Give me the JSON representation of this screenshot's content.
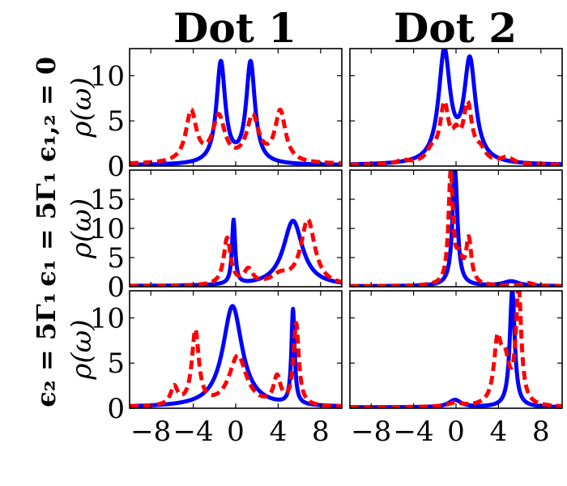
{
  "column_titles": [
    "Dot 1",
    "Dot 2"
  ],
  "row_titles": [
    "ϵ₁,₂ = 0",
    "ϵ₁ = 5Γ₁",
    "ϵ₂ = 5Γ₁"
  ],
  "colors": {
    "solid": "#0000ff",
    "dashed": "#ff0000"
  },
  "chart_data": [
    {
      "type": "line",
      "row": 0,
      "col": 0,
      "row_title": "ϵ₁,₂ = 0",
      "column_title": "Dot 1",
      "ylabel": "ρ(ω)",
      "xlim": [
        -10,
        10
      ],
      "ylim": [
        0,
        13
      ],
      "yticks": [
        0,
        5,
        10
      ],
      "xticks": [],
      "grid": false,
      "series": [
        {
          "style": "solid",
          "color": "#0000ff",
          "peaks": [
            [
              -1.4,
              11.2,
              0.5
            ],
            [
              1.4,
              11.2,
              0.5
            ]
          ],
          "baseline": 0.1
        },
        {
          "style": "dashed",
          "color": "#ff0000",
          "peaks": [
            [
              -4.2,
              5.6,
              0.6
            ],
            [
              -1.6,
              5.0,
              0.7
            ],
            [
              1.6,
              5.0,
              0.7
            ],
            [
              4.2,
              5.6,
              0.6
            ]
          ],
          "baseline": 0.2
        }
      ]
    },
    {
      "type": "line",
      "row": 0,
      "col": 1,
      "row_title": "ϵ₁,₂ = 0",
      "column_title": "Dot 2",
      "ylabel": "",
      "xlim": [
        -10,
        10
      ],
      "ylim": [
        0,
        13
      ],
      "yticks": [],
      "xticks": [],
      "grid": false,
      "series": [
        {
          "style": "solid",
          "color": "#0000ff",
          "peaks": [
            [
              -1.1,
              12.2,
              0.65
            ],
            [
              1.3,
              11.2,
              0.65
            ]
          ],
          "baseline": 0.1
        },
        {
          "style": "dashed",
          "color": "#ff0000",
          "peaks": [
            [
              -1.1,
              6.2,
              0.5
            ],
            [
              0.0,
              2.2,
              0.4
            ],
            [
              1.1,
              6.2,
              0.5
            ],
            [
              -2.3,
              1.2,
              0.6
            ],
            [
              2.3,
              1.2,
              0.6
            ],
            [
              4.8,
              0.7,
              0.7
            ],
            [
              -5.0,
              0.4,
              0.7
            ]
          ],
          "baseline": 0.1
        }
      ]
    },
    {
      "type": "line",
      "row": 1,
      "col": 0,
      "row_title": "ϵ₁ = 5Γ₁",
      "column_title": "Dot 1",
      "ylabel": "ρ(ω)",
      "xlim": [
        -10,
        10
      ],
      "ylim": [
        0,
        20
      ],
      "yticks": [
        0,
        5,
        10,
        15
      ],
      "xticks": [],
      "grid": false,
      "series": [
        {
          "style": "solid",
          "color": "#0000ff",
          "peaks": [
            [
              -0.2,
              11.0,
              0.18
            ],
            [
              5.4,
              11.2,
              1.1
            ]
          ],
          "baseline": 0.1
        },
        {
          "style": "dashed",
          "color": "#ff0000",
          "peaks": [
            [
              -0.8,
              8.0,
              0.4
            ],
            [
              1.2,
              2.5,
              0.5
            ],
            [
              6.8,
              11.2,
              0.8
            ],
            [
              4.2,
              1.5,
              1.0
            ]
          ],
          "baseline": 0.1
        }
      ]
    },
    {
      "type": "line",
      "row": 1,
      "col": 1,
      "row_title": "ϵ₁ = 5Γ₁",
      "column_title": "Dot 2",
      "ylabel": "",
      "xlim": [
        -10,
        10
      ],
      "ylim": [
        0,
        20
      ],
      "yticks": [],
      "xticks": [],
      "grid": false,
      "series": [
        {
          "style": "solid",
          "color": "#0000ff",
          "peaks": [
            [
              -0.1,
              20.0,
              0.28
            ],
            [
              5.2,
              0.8,
              0.9
            ]
          ],
          "baseline": 0.1
        },
        {
          "style": "dashed",
          "color": "#ff0000",
          "peaks": [
            [
              -0.5,
              19.0,
              0.25
            ],
            [
              1.2,
              7.5,
              0.3
            ],
            [
              0.3,
              4.0,
              0.4
            ],
            [
              6.8,
              0.5,
              0.6
            ]
          ],
          "baseline": 0.1
        }
      ]
    },
    {
      "type": "line",
      "row": 2,
      "col": 0,
      "row_title": "ϵ₂ = 5Γ₁",
      "column_title": "Dot 1",
      "ylabel": "ρ(ω)",
      "xlim": [
        -10,
        10
      ],
      "ylim": [
        0,
        13
      ],
      "yticks": [
        0,
        5,
        10
      ],
      "xticks": [
        -8,
        -4,
        0,
        4,
        8
      ],
      "grid": false,
      "series": [
        {
          "style": "solid",
          "color": "#0000ff",
          "peaks": [
            [
              -0.3,
              11.2,
              1.1
            ],
            [
              5.4,
              10.5,
              0.18
            ]
          ],
          "baseline": 0.1
        },
        {
          "style": "dashed",
          "color": "#ff0000",
          "peaks": [
            [
              -3.8,
              8.2,
              0.4
            ],
            [
              -5.8,
              2.0,
              0.4
            ],
            [
              0.2,
              5.6,
              1.0
            ],
            [
              3.9,
              3.0,
              0.4
            ],
            [
              5.7,
              9.0,
              0.3
            ]
          ],
          "baseline": 0.1
        }
      ]
    },
    {
      "type": "line",
      "row": 2,
      "col": 1,
      "row_title": "ϵ₂ = 5Γ₁",
      "column_title": "Dot 2",
      "ylabel": "",
      "xlim": [
        -10,
        10
      ],
      "ylim": [
        0,
        13
      ],
      "yticks": [],
      "xticks": [
        -8,
        -4,
        0,
        4,
        8
      ],
      "grid": false,
      "series": [
        {
          "style": "solid",
          "color": "#0000ff",
          "peaks": [
            [
              5.3,
              13.0,
              0.28
            ],
            [
              -0.1,
              0.8,
              0.7
            ]
          ],
          "baseline": 0.1
        },
        {
          "style": "dashed",
          "color": "#ff0000",
          "peaks": [
            [
              5.9,
              12.8,
              0.3
            ],
            [
              3.9,
              6.3,
              0.4
            ],
            [
              4.6,
              4.5,
              0.5
            ],
            [
              -0.1,
              0.4,
              0.8
            ]
          ],
          "baseline": 0.1
        }
      ]
    }
  ]
}
